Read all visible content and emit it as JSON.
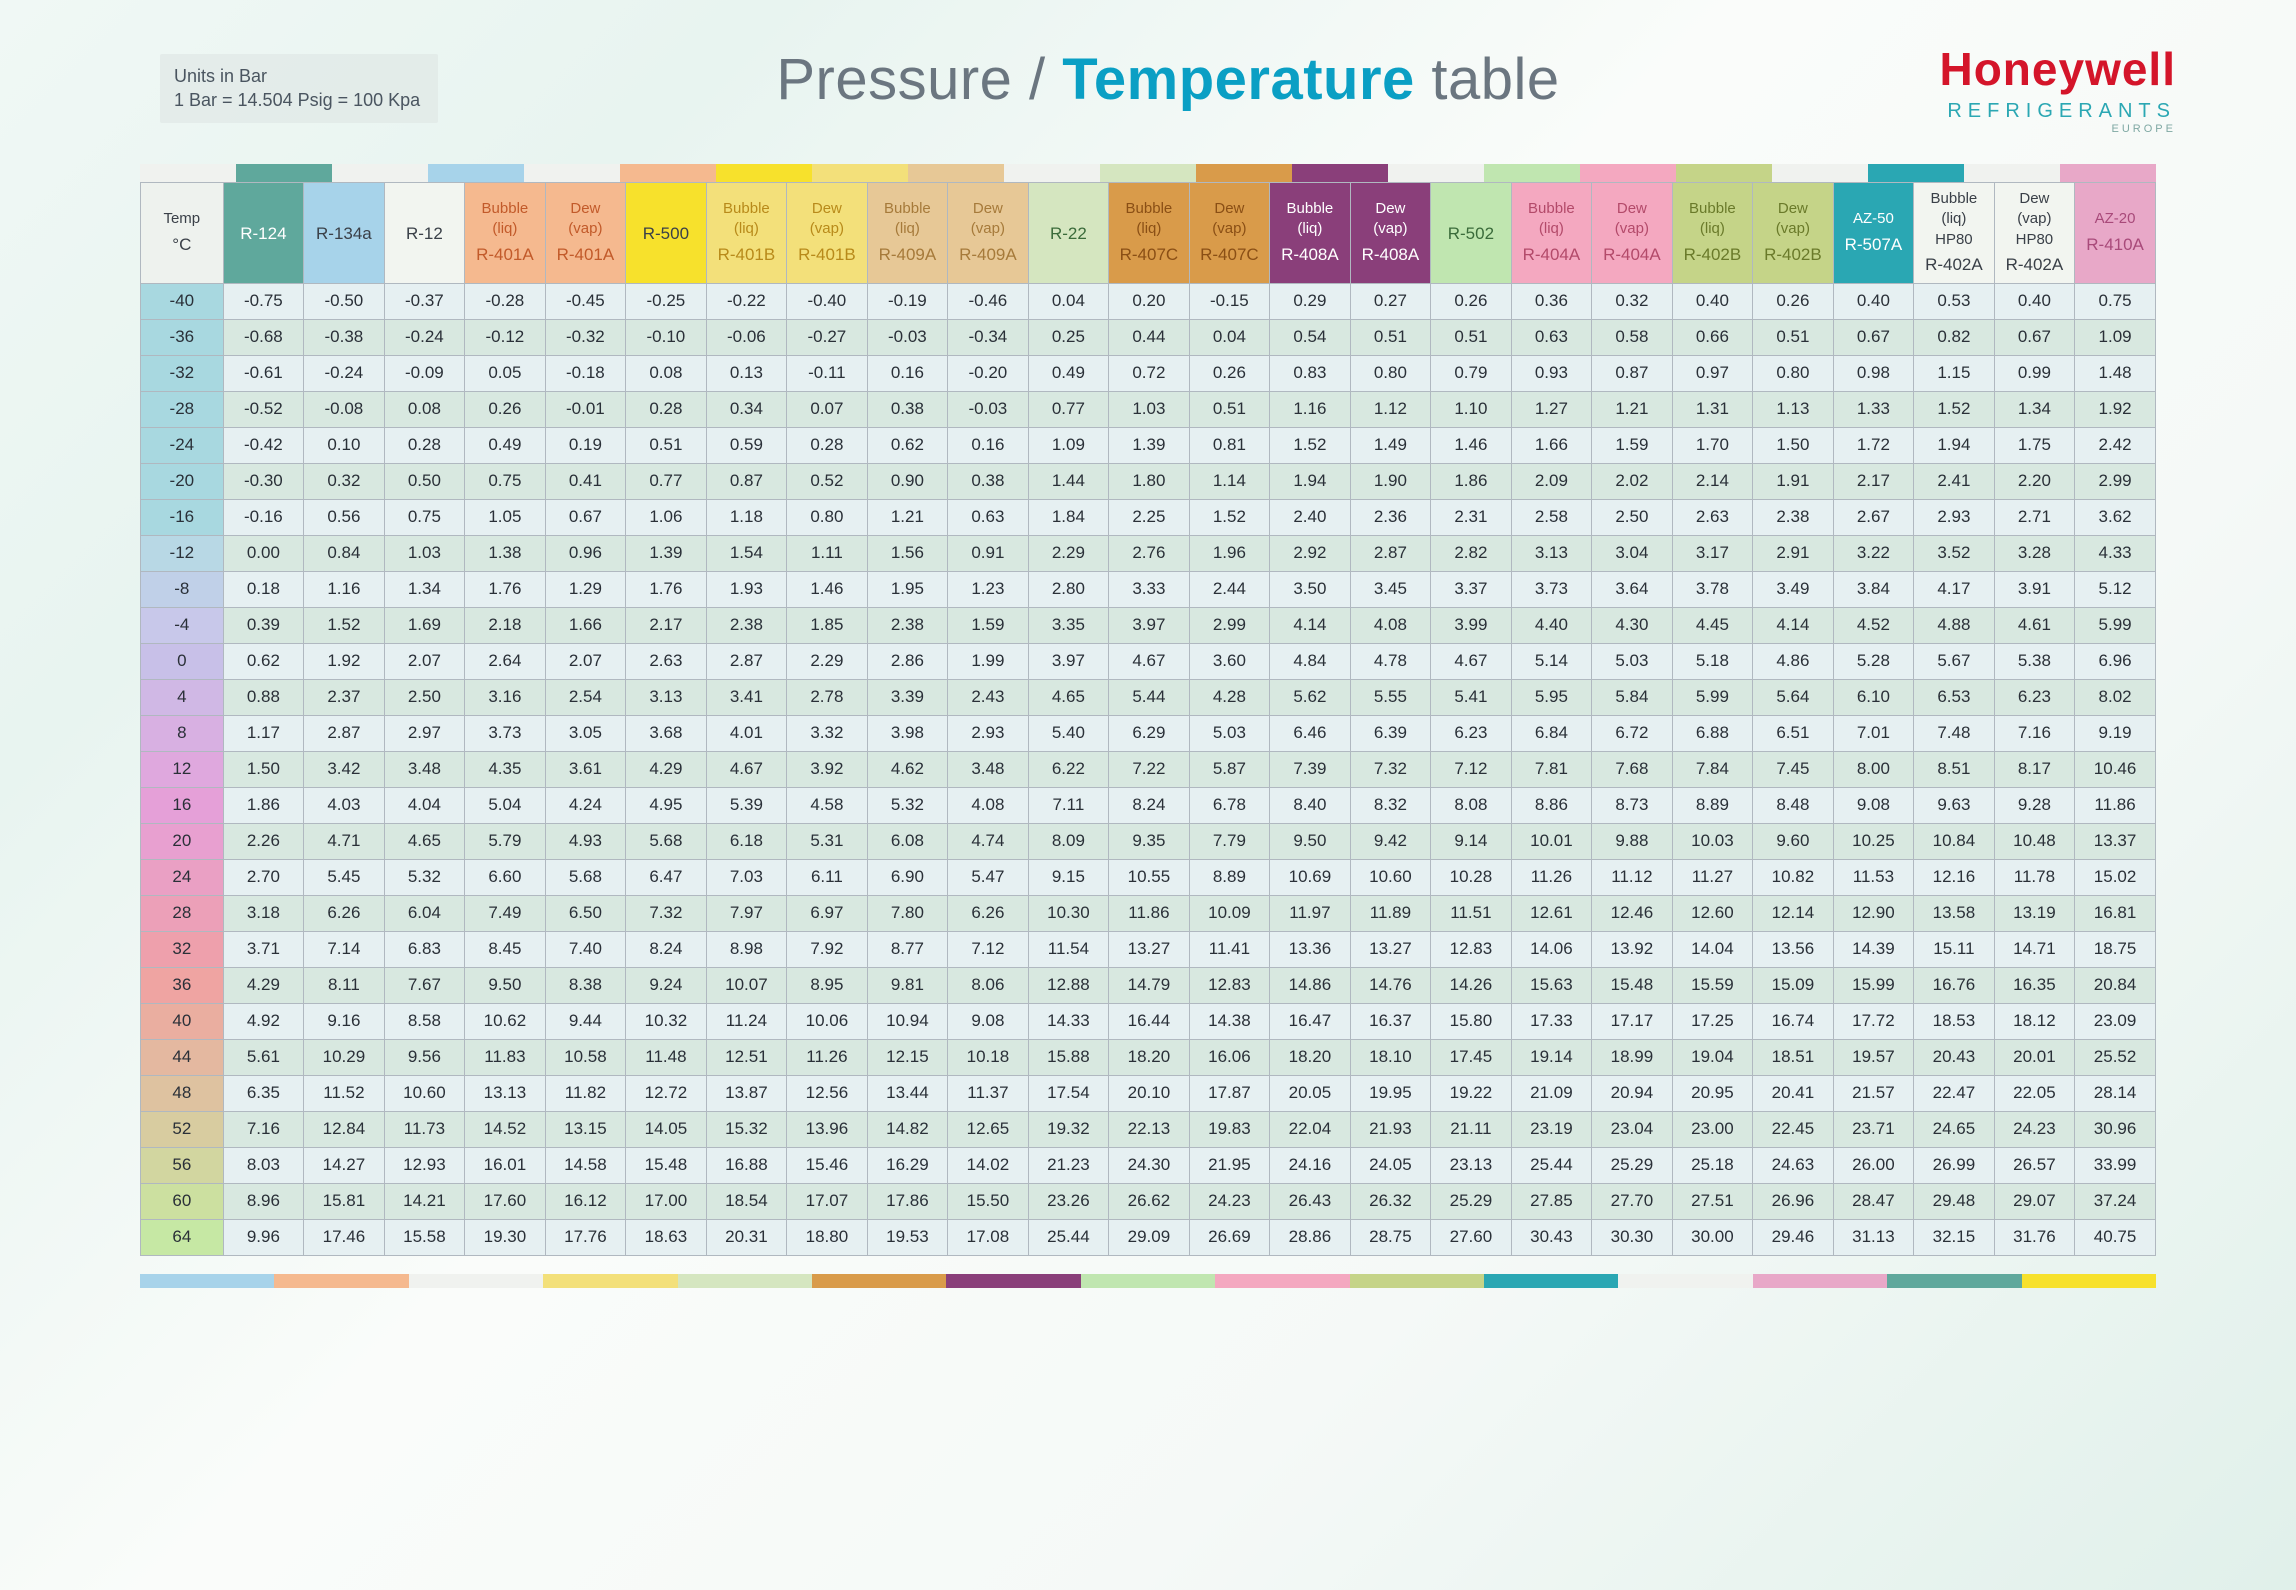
{
  "units": {
    "line1": "Units in Bar",
    "line2": "1 Bar = 14.504 Psig = 100 Kpa"
  },
  "title": {
    "pressure": "Pressure",
    "slash": " / ",
    "temperature": "Temperature",
    "rest": " table"
  },
  "brand": {
    "name": "Honeywell",
    "sub": "REFRIGERANTS",
    "sub2": "EUROPE"
  },
  "table": {
    "temp_header": {
      "label": "Temp",
      "unit": "°C"
    },
    "columns": [
      {
        "ref": "R-124",
        "top": "",
        "sub": "",
        "header_bg": "#5fa89c",
        "header_color": "#ffffff"
      },
      {
        "ref": "R-134a",
        "top": "",
        "sub": "",
        "header_bg": "#a7d3ea",
        "header_color": "#3a4048"
      },
      {
        "ref": "R-12",
        "top": "",
        "sub": "",
        "header_bg": "#f2f5f0",
        "header_color": "#3a4048"
      },
      {
        "ref": "R-401A",
        "top": "Bubble",
        "sub": "(liq)",
        "header_bg": "#f5b98f",
        "header_color": "#c25a2a"
      },
      {
        "ref": "R-401A",
        "top": "Dew",
        "sub": "(vap)",
        "header_bg": "#f5b98f",
        "header_color": "#c25a2a"
      },
      {
        "ref": "R-500",
        "top": "",
        "sub": "",
        "header_bg": "#f7e12c",
        "header_color": "#3a4048"
      },
      {
        "ref": "R-401B",
        "top": "Bubble",
        "sub": "(liq)",
        "header_bg": "#f3e07a",
        "header_color": "#b88a1a"
      },
      {
        "ref": "R-401B",
        "top": "Dew",
        "sub": "(vap)",
        "header_bg": "#f3e07a",
        "header_color": "#b88a1a"
      },
      {
        "ref": "R-409A",
        "top": "Bubble",
        "sub": "(liq)",
        "header_bg": "#e7c896",
        "header_color": "#a67a3a"
      },
      {
        "ref": "R-409A",
        "top": "Dew",
        "sub": "(vap)",
        "header_bg": "#e7c896",
        "header_color": "#a67a3a"
      },
      {
        "ref": "R-22",
        "top": "",
        "sub": "",
        "header_bg": "#d5e6c0",
        "header_color": "#3a6b3a"
      },
      {
        "ref": "R-407C",
        "top": "Bubble",
        "sub": "(liq)",
        "header_bg": "#d99b4a",
        "header_color": "#8a4f15"
      },
      {
        "ref": "R-407C",
        "top": "Dew",
        "sub": "(vap)",
        "header_bg": "#d99b4a",
        "header_color": "#8a4f15"
      },
      {
        "ref": "R-408A",
        "top": "Bubble",
        "sub": "(liq)",
        "header_bg": "#8a3f7a",
        "header_color": "#ffffff"
      },
      {
        "ref": "R-408A",
        "top": "Dew",
        "sub": "(vap)",
        "header_bg": "#8a3f7a",
        "header_color": "#ffffff"
      },
      {
        "ref": "R-502",
        "top": "",
        "sub": "",
        "header_bg": "#c0e6b0",
        "header_color": "#3a6b3a"
      },
      {
        "ref": "R-404A",
        "top": "Bubble",
        "sub": "(liq)",
        "header_bg": "#f4a8c0",
        "header_color": "#b34a6a"
      },
      {
        "ref": "R-404A",
        "top": "Dew",
        "sub": "(vap)",
        "header_bg": "#f4a8c0",
        "header_color": "#b34a6a"
      },
      {
        "ref": "R-402B",
        "top": "Bubble",
        "sub": "(liq)",
        "header_bg": "#c5d488",
        "header_color": "#6a7a2a"
      },
      {
        "ref": "R-402B",
        "top": "Dew",
        "sub": "(vap)",
        "header_bg": "#c5d488",
        "header_color": "#6a7a2a"
      },
      {
        "ref": "R-507A",
        "top": "AZ-50",
        "sub": "",
        "header_bg": "#2aa7b3",
        "header_color": "#ffffff"
      },
      {
        "ref": "R-402A",
        "top": "Bubble",
        "sub": "(liq)",
        "sub2": "HP80",
        "header_bg": "#f2f5f0",
        "header_color": "#3a4048"
      },
      {
        "ref": "R-402A",
        "top": "Dew",
        "sub": "(vap)",
        "sub2": "HP80",
        "header_bg": "#f2f5f0",
        "header_color": "#3a4048"
      },
      {
        "ref": "R-410A",
        "top": "AZ-20",
        "sub": "",
        "header_bg": "#e8a8c8",
        "header_color": "#a84a7a"
      }
    ],
    "temp_colors": [
      "#a8d8e0",
      "#a8d8e0",
      "#a8d8e0",
      "#a8d8e0",
      "#a8d8e0",
      "#a8d8e0",
      "#a8d8e0",
      "#b8d8e5",
      "#c0d0e8",
      "#c8c8ea",
      "#c8c0e8",
      "#d0b8e5",
      "#d8b0e2",
      "#dfa8de",
      "#e5a0d8",
      "#e8a0d0",
      "#eaa0c4",
      "#eca0b8",
      "#eea0ac",
      "#efa4a2",
      "#eaaea0",
      "#e4b8a0",
      "#dec2a0",
      "#d8cca0",
      "#d2d6a0",
      "#cce0a0",
      "#c6e8a4"
    ],
    "row_colors": [
      "#e6f0f2",
      "#d8e8e0"
    ],
    "temps": [
      -40,
      -36,
      -32,
      -28,
      -24,
      -20,
      -16,
      -12,
      -8,
      -4,
      0,
      4,
      8,
      12,
      16,
      20,
      24,
      28,
      32,
      36,
      40,
      44,
      48,
      52,
      56,
      60,
      64
    ],
    "rows": [
      [
        -0.75,
        -0.5,
        -0.37,
        -0.28,
        -0.45,
        -0.25,
        -0.22,
        -0.4,
        -0.19,
        -0.46,
        0.04,
        0.2,
        -0.15,
        0.29,
        0.27,
        0.26,
        0.36,
        0.32,
        0.4,
        0.26,
        0.4,
        0.53,
        0.4,
        0.75
      ],
      [
        -0.68,
        -0.38,
        -0.24,
        -0.12,
        -0.32,
        -0.1,
        -0.06,
        -0.27,
        -0.03,
        -0.34,
        0.25,
        0.44,
        0.04,
        0.54,
        0.51,
        0.51,
        0.63,
        0.58,
        0.66,
        0.51,
        0.67,
        0.82,
        0.67,
        1.09
      ],
      [
        -0.61,
        -0.24,
        -0.09,
        0.05,
        -0.18,
        0.08,
        0.13,
        -0.11,
        0.16,
        -0.2,
        0.49,
        0.72,
        0.26,
        0.83,
        0.8,
        0.79,
        0.93,
        0.87,
        0.97,
        0.8,
        0.98,
        1.15,
        0.99,
        1.48
      ],
      [
        -0.52,
        -0.08,
        0.08,
        0.26,
        -0.01,
        0.28,
        0.34,
        0.07,
        0.38,
        -0.03,
        0.77,
        1.03,
        0.51,
        1.16,
        1.12,
        1.1,
        1.27,
        1.21,
        1.31,
        1.13,
        1.33,
        1.52,
        1.34,
        1.92
      ],
      [
        -0.42,
        0.1,
        0.28,
        0.49,
        0.19,
        0.51,
        0.59,
        0.28,
        0.62,
        0.16,
        1.09,
        1.39,
        0.81,
        1.52,
        1.49,
        1.46,
        1.66,
        1.59,
        1.7,
        1.5,
        1.72,
        1.94,
        1.75,
        2.42
      ],
      [
        -0.3,
        0.32,
        0.5,
        0.75,
        0.41,
        0.77,
        0.87,
        0.52,
        0.9,
        0.38,
        1.44,
        1.8,
        1.14,
        1.94,
        1.9,
        1.86,
        2.09,
        2.02,
        2.14,
        1.91,
        2.17,
        2.41,
        2.2,
        2.99
      ],
      [
        -0.16,
        0.56,
        0.75,
        1.05,
        0.67,
        1.06,
        1.18,
        0.8,
        1.21,
        0.63,
        1.84,
        2.25,
        1.52,
        2.4,
        2.36,
        2.31,
        2.58,
        2.5,
        2.63,
        2.38,
        2.67,
        2.93,
        2.71,
        3.62
      ],
      [
        0.0,
        0.84,
        1.03,
        1.38,
        0.96,
        1.39,
        1.54,
        1.11,
        1.56,
        0.91,
        2.29,
        2.76,
        1.96,
        2.92,
        2.87,
        2.82,
        3.13,
        3.04,
        3.17,
        2.91,
        3.22,
        3.52,
        3.28,
        4.33
      ],
      [
        0.18,
        1.16,
        1.34,
        1.76,
        1.29,
        1.76,
        1.93,
        1.46,
        1.95,
        1.23,
        2.8,
        3.33,
        2.44,
        3.5,
        3.45,
        3.37,
        3.73,
        3.64,
        3.78,
        3.49,
        3.84,
        4.17,
        3.91,
        5.12
      ],
      [
        0.39,
        1.52,
        1.69,
        2.18,
        1.66,
        2.17,
        2.38,
        1.85,
        2.38,
        1.59,
        3.35,
        3.97,
        2.99,
        4.14,
        4.08,
        3.99,
        4.4,
        4.3,
        4.45,
        4.14,
        4.52,
        4.88,
        4.61,
        5.99
      ],
      [
        0.62,
        1.92,
        2.07,
        2.64,
        2.07,
        2.63,
        2.87,
        2.29,
        2.86,
        1.99,
        3.97,
        4.67,
        3.6,
        4.84,
        4.78,
        4.67,
        5.14,
        5.03,
        5.18,
        4.86,
        5.28,
        5.67,
        5.38,
        6.96
      ],
      [
        0.88,
        2.37,
        2.5,
        3.16,
        2.54,
        3.13,
        3.41,
        2.78,
        3.39,
        2.43,
        4.65,
        5.44,
        4.28,
        5.62,
        5.55,
        5.41,
        5.95,
        5.84,
        5.99,
        5.64,
        6.1,
        6.53,
        6.23,
        8.02
      ],
      [
        1.17,
        2.87,
        2.97,
        3.73,
        3.05,
        3.68,
        4.01,
        3.32,
        3.98,
        2.93,
        5.4,
        6.29,
        5.03,
        6.46,
        6.39,
        6.23,
        6.84,
        6.72,
        6.88,
        6.51,
        7.01,
        7.48,
        7.16,
        9.19
      ],
      [
        1.5,
        3.42,
        3.48,
        4.35,
        3.61,
        4.29,
        4.67,
        3.92,
        4.62,
        3.48,
        6.22,
        7.22,
        5.87,
        7.39,
        7.32,
        7.12,
        7.81,
        7.68,
        7.84,
        7.45,
        8.0,
        8.51,
        8.17,
        10.46
      ],
      [
        1.86,
        4.03,
        4.04,
        5.04,
        4.24,
        4.95,
        5.39,
        4.58,
        5.32,
        4.08,
        7.11,
        8.24,
        6.78,
        8.4,
        8.32,
        8.08,
        8.86,
        8.73,
        8.89,
        8.48,
        9.08,
        9.63,
        9.28,
        11.86
      ],
      [
        2.26,
        4.71,
        4.65,
        5.79,
        4.93,
        5.68,
        6.18,
        5.31,
        6.08,
        4.74,
        8.09,
        9.35,
        7.79,
        9.5,
        9.42,
        9.14,
        10.01,
        9.88,
        10.03,
        9.6,
        10.25,
        10.84,
        10.48,
        13.37
      ],
      [
        2.7,
        5.45,
        5.32,
        6.6,
        5.68,
        6.47,
        7.03,
        6.11,
        6.9,
        5.47,
        9.15,
        10.55,
        8.89,
        10.69,
        10.6,
        10.28,
        11.26,
        11.12,
        11.27,
        10.82,
        11.53,
        12.16,
        11.78,
        15.02
      ],
      [
        3.18,
        6.26,
        6.04,
        7.49,
        6.5,
        7.32,
        7.97,
        6.97,
        7.8,
        6.26,
        10.3,
        11.86,
        10.09,
        11.97,
        11.89,
        11.51,
        12.61,
        12.46,
        12.6,
        12.14,
        12.9,
        13.58,
        13.19,
        16.81
      ],
      [
        3.71,
        7.14,
        6.83,
        8.45,
        7.4,
        8.24,
        8.98,
        7.92,
        8.77,
        7.12,
        11.54,
        13.27,
        11.41,
        13.36,
        13.27,
        12.83,
        14.06,
        13.92,
        14.04,
        13.56,
        14.39,
        15.11,
        14.71,
        18.75
      ],
      [
        4.29,
        8.11,
        7.67,
        9.5,
        8.38,
        9.24,
        10.07,
        8.95,
        9.81,
        8.06,
        12.88,
        14.79,
        12.83,
        14.86,
        14.76,
        14.26,
        15.63,
        15.48,
        15.59,
        15.09,
        15.99,
        16.76,
        16.35,
        20.84
      ],
      [
        4.92,
        9.16,
        8.58,
        10.62,
        9.44,
        10.32,
        11.24,
        10.06,
        10.94,
        9.08,
        14.33,
        16.44,
        14.38,
        16.47,
        16.37,
        15.8,
        17.33,
        17.17,
        17.25,
        16.74,
        17.72,
        18.53,
        18.12,
        23.09
      ],
      [
        5.61,
        10.29,
        9.56,
        11.83,
        10.58,
        11.48,
        12.51,
        11.26,
        12.15,
        10.18,
        15.88,
        18.2,
        16.06,
        18.2,
        18.1,
        17.45,
        19.14,
        18.99,
        19.04,
        18.51,
        19.57,
        20.43,
        20.01,
        25.52
      ],
      [
        6.35,
        11.52,
        10.6,
        13.13,
        11.82,
        12.72,
        13.87,
        12.56,
        13.44,
        11.37,
        17.54,
        20.1,
        17.87,
        20.05,
        19.95,
        19.22,
        21.09,
        20.94,
        20.95,
        20.41,
        21.57,
        22.47,
        22.05,
        28.14
      ],
      [
        7.16,
        12.84,
        11.73,
        14.52,
        13.15,
        14.05,
        15.32,
        13.96,
        14.82,
        12.65,
        19.32,
        22.13,
        19.83,
        22.04,
        21.93,
        21.11,
        23.19,
        23.04,
        23.0,
        22.45,
        23.71,
        24.65,
        24.23,
        30.96
      ],
      [
        8.03,
        14.27,
        12.93,
        16.01,
        14.58,
        15.48,
        16.88,
        15.46,
        16.29,
        14.02,
        21.23,
        24.3,
        21.95,
        24.16,
        24.05,
        23.13,
        25.44,
        25.29,
        25.18,
        24.63,
        26.0,
        26.99,
        26.57,
        33.99
      ],
      [
        8.96,
        15.81,
        14.21,
        17.6,
        16.12,
        17.0,
        18.54,
        17.07,
        17.86,
        15.5,
        23.26,
        26.62,
        24.23,
        26.43,
        26.32,
        25.29,
        27.85,
        27.7,
        27.51,
        26.96,
        28.47,
        29.48,
        29.07,
        37.24
      ],
      [
        9.96,
        17.46,
        15.58,
        19.3,
        17.76,
        18.63,
        20.31,
        18.8,
        19.53,
        17.08,
        25.44,
        29.09,
        26.69,
        28.86,
        28.75,
        27.6,
        30.43,
        30.3,
        30.0,
        29.46,
        31.13,
        32.15,
        31.76,
        40.75
      ]
    ]
  },
  "bar": {
    "top": [
      "#f0f2ef",
      "#5fa89c",
      "#f0f2ef",
      "#a7d3ea",
      "#f0f2ef",
      "#f5b98f",
      "#f7e12c",
      "#f3e07a",
      "#e7c896",
      "#f0f2ef",
      "#d5e6c0",
      "#d99b4a",
      "#8a3f7a",
      "#f0f2ef",
      "#c0e6b0",
      "#f4a8c0",
      "#c5d488",
      "#f0f2ef",
      "#2aa7b3",
      "#f0f2ef",
      "#e8a8c8"
    ],
    "bottom": [
      "#a7d3ea",
      "#f5b98f",
      "#f0f2ef",
      "#f3e07a",
      "#d5e6c0",
      "#d99b4a",
      "#8a3f7a",
      "#c0e6b0",
      "#f4a8c0",
      "#c5d488",
      "#2aa7b3",
      "#f0f2ef",
      "#e8a8c8",
      "#5fa89c",
      "#f7e12c"
    ]
  }
}
